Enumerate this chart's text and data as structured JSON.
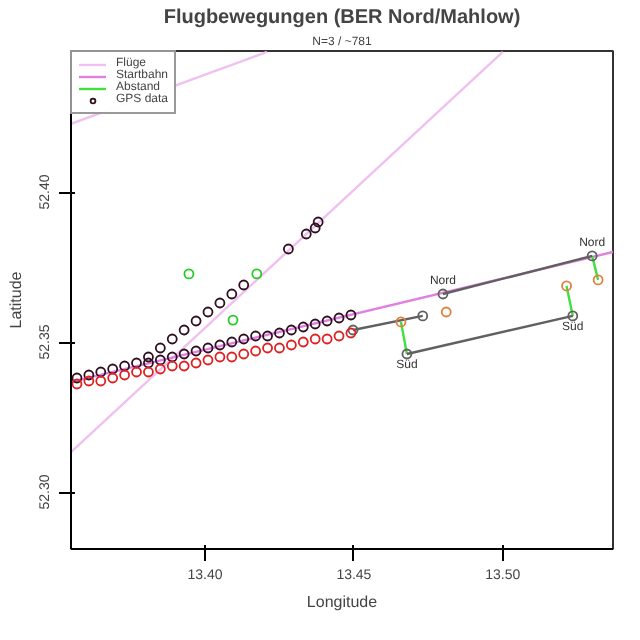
{
  "chart_data": {
    "type": "scatter",
    "title": "Flugbewegungen (BER Nord/Mahlow)",
    "subtitle": "N=3 / ~781",
    "xlabel": "Longitude",
    "ylabel": "Latitude",
    "xlim": [
      13.355,
      13.537
    ],
    "ylim": [
      52.281,
      52.447
    ],
    "xticks": [
      {
        "value": 13.4,
        "label": "13.40"
      },
      {
        "value": 13.45,
        "label": "13.45"
      },
      {
        "value": 13.5,
        "label": "13.50"
      }
    ],
    "yticks": [
      {
        "value": 52.3,
        "label": "52.30"
      },
      {
        "value": 52.35,
        "label": "52.35"
      },
      {
        "value": 52.4,
        "label": "52.40"
      }
    ],
    "grid": false,
    "legend": "top left",
    "series": [
      {
        "name": "Flüge",
        "type": "line",
        "color": "#f0c0f0",
        "x": [
          13.355,
          13.4208
        ],
        "values": [
          52.4227,
          52.4467
        ]
      },
      {
        "type": "line",
        "color": "#f0c0f0",
        "x": [
          13.355,
          13.5
        ],
        "values": [
          52.3133,
          52.4467
        ]
      },
      {
        "name": "Startbahn",
        "type": "line",
        "color": "#e080e0",
        "x": [
          13.355,
          13.537
        ],
        "values": [
          52.3367,
          52.38
        ]
      },
      {
        "name": "Abstand",
        "type": "line",
        "color": "#40e040",
        "x": [
          13.4658,
          13.4678
        ],
        "values": [
          52.3567,
          52.346
        ]
      },
      {
        "type": "line",
        "color": "#40e040",
        "x": [
          13.5214,
          13.5235
        ],
        "values": [
          52.3687,
          52.3587
        ]
      },
      {
        "type": "line",
        "color": "#40e040",
        "x": [
          13.53,
          13.532
        ],
        "values": [
          52.3787,
          52.3707
        ]
      },
      {
        "type": "line",
        "marker": "circle",
        "color": "#606060",
        "x": [
          13.4799,
          13.53
        ],
        "values": [
          52.366,
          52.3787
        ]
      },
      {
        "type": "line",
        "marker": "circle",
        "color": "#606060",
        "x": [
          13.4678,
          13.5235
        ],
        "values": [
          52.346,
          52.3587
        ]
      },
      {
        "type": "line",
        "marker": "circle",
        "color": "#606060",
        "x": [
          13.4497,
          13.4731
        ],
        "values": [
          52.354,
          52.3587
        ]
      },
      {
        "name": "GPS data",
        "marker": "circle",
        "color": "#301020",
        "x": [
          13.357,
          13.361,
          13.365,
          13.369,
          13.373,
          13.377,
          13.381,
          13.385,
          13.389,
          13.393,
          13.397,
          13.401,
          13.405,
          13.409,
          13.413,
          13.417,
          13.421,
          13.425,
          13.429,
          13.433,
          13.437,
          13.441,
          13.445,
          13.449,
          13.381,
          13.385,
          13.389,
          13.393,
          13.397,
          13.401,
          13.405,
          13.409,
          13.413,
          13.428,
          13.434,
          13.437,
          13.438
        ],
        "values": [
          52.338,
          52.339,
          52.34,
          52.341,
          52.342,
          52.343,
          52.343,
          52.344,
          52.345,
          52.346,
          52.347,
          52.348,
          52.349,
          52.35,
          52.351,
          52.352,
          52.352,
          52.353,
          52.354,
          52.355,
          52.356,
          52.357,
          52.358,
          52.359,
          52.345,
          52.348,
          52.351,
          52.354,
          52.357,
          52.36,
          52.363,
          52.366,
          52.369,
          52.381,
          52.386,
          52.388,
          52.39
        ]
      },
      {
        "marker": "circle",
        "color": "#e02020",
        "x": [
          13.357,
          13.361,
          13.365,
          13.369,
          13.373,
          13.377,
          13.381,
          13.385,
          13.389,
          13.393,
          13.397,
          13.401,
          13.405,
          13.409,
          13.413,
          13.417,
          13.421,
          13.425,
          13.429,
          13.433,
          13.437,
          13.441,
          13.445,
          13.449
        ],
        "values": [
          52.336,
          52.337,
          52.337,
          52.338,
          52.339,
          52.34,
          52.34,
          52.341,
          52.342,
          52.342,
          52.343,
          52.344,
          52.345,
          52.345,
          52.346,
          52.347,
          52.348,
          52.348,
          52.349,
          52.35,
          52.351,
          52.351,
          52.352,
          52.353
        ]
      },
      {
        "marker": "circle",
        "color": "#e08040",
        "x": [
          13.4658,
          13.481,
          13.5214,
          13.532
        ],
        "values": [
          52.3567,
          52.36,
          52.3687,
          52.3707
        ]
      },
      {
        "marker": "circle",
        "color": "#22cc22",
        "x": [
          13.3946,
          13.4174,
          13.4094
        ],
        "values": [
          52.3727,
          52.3727,
          52.3573
        ]
      }
    ],
    "annotations": [
      {
        "text": "Nord",
        "x": 13.4799,
        "y": 52.366
      },
      {
        "text": "Nord",
        "x": 13.53,
        "y": 52.3787
      },
      {
        "text": "Süd",
        "x": 13.4678,
        "y": 52.346
      },
      {
        "text": "Süd",
        "x": 13.5235,
        "y": 52.3587
      }
    ]
  }
}
